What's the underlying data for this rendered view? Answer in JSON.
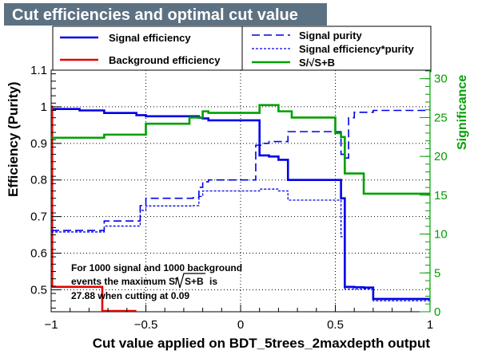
{
  "chart_data": {
    "type": "line",
    "title": "Cut efficiencies and optimal cut value",
    "xlabel": "Cut value applied on BDT_5trees_2maxdepth output",
    "ylabel": "Efficiency (Purity)",
    "y2label": "Significance",
    "xlim": [
      -1,
      1
    ],
    "ylim": [
      0.44,
      1.1
    ],
    "y2lim": [
      0,
      31.1
    ],
    "grid": true,
    "legend_position": "top",
    "x_ticks": [
      "−1",
      "−0.5",
      "0",
      "0.5",
      "1"
    ],
    "y_ticks": [
      "0.5",
      "0.6",
      "0.7",
      "0.8",
      "0.9",
      "1",
      "1.1"
    ],
    "y2_ticks": [
      "0",
      "5",
      "10",
      "15",
      "20",
      "25",
      "30"
    ],
    "colors": {
      "signal": "#0000e6",
      "background": "#e60000",
      "significance": "#00a000",
      "title_box": "#5c7182"
    },
    "annotation": {
      "line1": "For 1000 signal and 1000 background",
      "line2_prefix": "events the maximum S/",
      "line2_sqrt": "S+B",
      "line2_suffix": "is",
      "line3": "27.88 when cutting at  0.09"
    },
    "series": [
      {
        "name": "Signal efficiency",
        "style": "solid",
        "axis": "left",
        "x": [
          -1,
          -0.85,
          -0.72,
          -0.55,
          -0.5,
          -0.22,
          -0.2,
          -0.17,
          0.1,
          0.15,
          0.2,
          0.25,
          0.5,
          0.53,
          0.55,
          0.6,
          0.65,
          0.7,
          1
        ],
        "y": [
          0.994,
          0.99,
          0.983,
          0.977,
          0.974,
          0.97,
          0.968,
          0.963,
          0.867,
          0.864,
          0.855,
          0.8,
          0.8,
          0.75,
          0.508,
          0.507,
          0.506,
          0.475,
          0.475
        ]
      },
      {
        "name": "Background efficiency",
        "style": "solid",
        "axis": "left",
        "x": [
          -1,
          -0.995,
          -0.73,
          -0.55
        ],
        "y": [
          1.0,
          0.508,
          0.442,
          0.442
        ]
      },
      {
        "name": "Signal purity",
        "style": "dashed",
        "axis": "left",
        "x": [
          -1,
          -0.72,
          -0.53,
          -0.5,
          -0.25,
          -0.22,
          -0.2,
          -0.17,
          0.08,
          0.12,
          0.15,
          0.25,
          0.5,
          0.53,
          0.55,
          0.57,
          0.6,
          0.7,
          1
        ],
        "y": [
          0.662,
          0.688,
          0.73,
          0.75,
          0.752,
          0.78,
          0.795,
          0.8,
          0.895,
          0.9,
          0.905,
          0.932,
          0.932,
          0.87,
          0.86,
          0.97,
          0.985,
          0.99,
          0.995
        ]
      },
      {
        "name": "Signal efficiency*purity",
        "style": "dotted",
        "axis": "left",
        "x": [
          -1,
          -0.72,
          -0.53,
          -0.5,
          -0.25,
          -0.22,
          -0.2,
          -0.17,
          0.1,
          0.15,
          0.2,
          0.25,
          0.5,
          0.53,
          0.55,
          0.6,
          0.65,
          0.7,
          1
        ],
        "y": [
          0.658,
          0.674,
          0.717,
          0.729,
          0.73,
          0.755,
          0.77,
          0.77,
          0.775,
          0.775,
          0.77,
          0.745,
          0.745,
          0.645,
          0.502,
          0.502,
          0.502,
          0.47,
          0.47
        ]
      },
      {
        "name": "S/√S+B",
        "style": "solid",
        "axis": "right",
        "x": [
          -1,
          -0.8,
          -0.72,
          -0.5,
          -0.27,
          -0.2,
          -0.17,
          0.1,
          0.2,
          0.27,
          0.5,
          0.53,
          0.55,
          0.65,
          0.7,
          1
        ],
        "y": [
          22.4,
          22.4,
          22.8,
          24.2,
          25.0,
          25.8,
          25.6,
          26.6,
          25.8,
          25.0,
          23.0,
          22.5,
          17.8,
          15.2,
          15.2,
          15.2
        ]
      }
    ]
  }
}
